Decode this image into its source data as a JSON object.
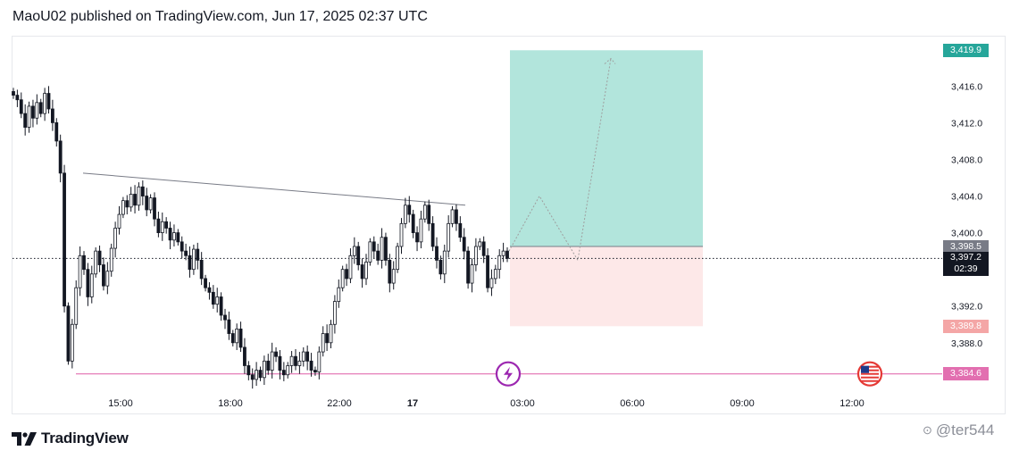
{
  "header": {
    "title": "MaoU02 published on TradingView.com, Jun 17, 2025 02:37 UTC"
  },
  "branding": {
    "logo_text": "TradingView",
    "watermark_text": "@ter544"
  },
  "colors": {
    "profit_zone": "#b2e5dc",
    "loss_zone": "#fde8e8",
    "target_label": "#26a69a",
    "stop_label": "#f4a6a6",
    "entry_label": "#787b86",
    "current_label": "#131722",
    "horizontal_line": "#e26fb0",
    "event_icon": "#9c27b0",
    "us_flag": "#e53935"
  },
  "chart_data": {
    "type": "candlestick",
    "y_axis": {
      "min": 3383.5,
      "max": 3421.0,
      "ticks": [
        "3,416.0",
        "3,412.0",
        "3,408.0",
        "3,404.0",
        "3,400.0",
        "3,392.0",
        "3,388.0"
      ],
      "tick_values": [
        3416,
        3412,
        3408,
        3404,
        3400,
        3392,
        3388
      ]
    },
    "x_axis": {
      "labels": [
        "15:00",
        "18:00",
        "22:00",
        "17",
        "03:00",
        "06:00",
        "09:00",
        "12:00"
      ]
    },
    "price_labels": {
      "target": {
        "text": "3,419.9",
        "value": 3419.9
      },
      "entry": {
        "text": "3,398.5",
        "value": 3398.5
      },
      "current_price": {
        "text": "3,397.2",
        "value": 3397.2
      },
      "countdown": "02:39",
      "stop": {
        "text": "3,389.8",
        "value": 3389.8
      },
      "horizontal_level": {
        "text": "3,384.6",
        "value": 3384.6
      }
    },
    "candles_close": [
      3415.0,
      3414.5,
      3413.0,
      3411.5,
      3413.8,
      3412.5,
      3414.2,
      3413.0,
      3415.2,
      3413.5,
      3412.0,
      3410.0,
      3406.5,
      3392.0,
      3386.0,
      3390.0,
      3394.0,
      3397.5,
      3396.0,
      3393.0,
      3395.5,
      3398.0,
      3396.5,
      3394.2,
      3395.8,
      3398.3,
      3400.5,
      3402.0,
      3403.5,
      3402.8,
      3404.2,
      3403.0,
      3405.0,
      3404.0,
      3402.5,
      3403.8,
      3401.5,
      3400.0,
      3401.2,
      3400.5,
      3399.2,
      3400.0,
      3399.0,
      3398.0,
      3397.5,
      3396.0,
      3398.2,
      3397.0,
      3395.0,
      3394.0,
      3393.5,
      3392.2,
      3393.0,
      3391.0,
      3390.5,
      3389.0,
      3388.0,
      3389.5,
      3387.5,
      3385.5,
      3384.5,
      3384.0,
      3385.0,
      3384.2,
      3386.0,
      3385.0,
      3387.0,
      3386.5,
      3385.0,
      3384.5,
      3385.5,
      3386.5,
      3385.5,
      3386.0,
      3387.0,
      3386.0,
      3385.0,
      3384.8,
      3387.0,
      3389.0,
      3388.0,
      3390.0,
      3392.5,
      3394.0,
      3396.0,
      3395.0,
      3397.5,
      3398.5,
      3396.5,
      3395.0,
      3396.8,
      3399.0,
      3398.0,
      3397.0,
      3399.5,
      3397.0,
      3394.5,
      3396.0,
      3398.5,
      3401.0,
      3403.0,
      3402.0,
      3400.0,
      3399.0,
      3401.5,
      3403.0,
      3401.0,
      3398.5,
      3397.0,
      3395.5,
      3398.0,
      3401.0,
      3402.5,
      3401.0,
      3399.5,
      3398.0,
      3394.5,
      3396.5,
      3398.5,
      3399.0,
      3397.5,
      3394.0,
      3395.0,
      3396.0,
      3397.5,
      3398.0,
      3397.2
    ],
    "trendline": {
      "from": {
        "x": "14:00",
        "y": 3406.5
      },
      "to": {
        "x": "01:30",
        "y": 3403.0
      }
    },
    "horizontal_line": {
      "y": 3384.6
    },
    "position": {
      "entry": 3398.5,
      "target": 3419.9,
      "stop": 3389.8
    },
    "projection_path_y": [
      3398.0,
      3404.0,
      3397.0,
      3419.0
    ],
    "grid": false
  }
}
